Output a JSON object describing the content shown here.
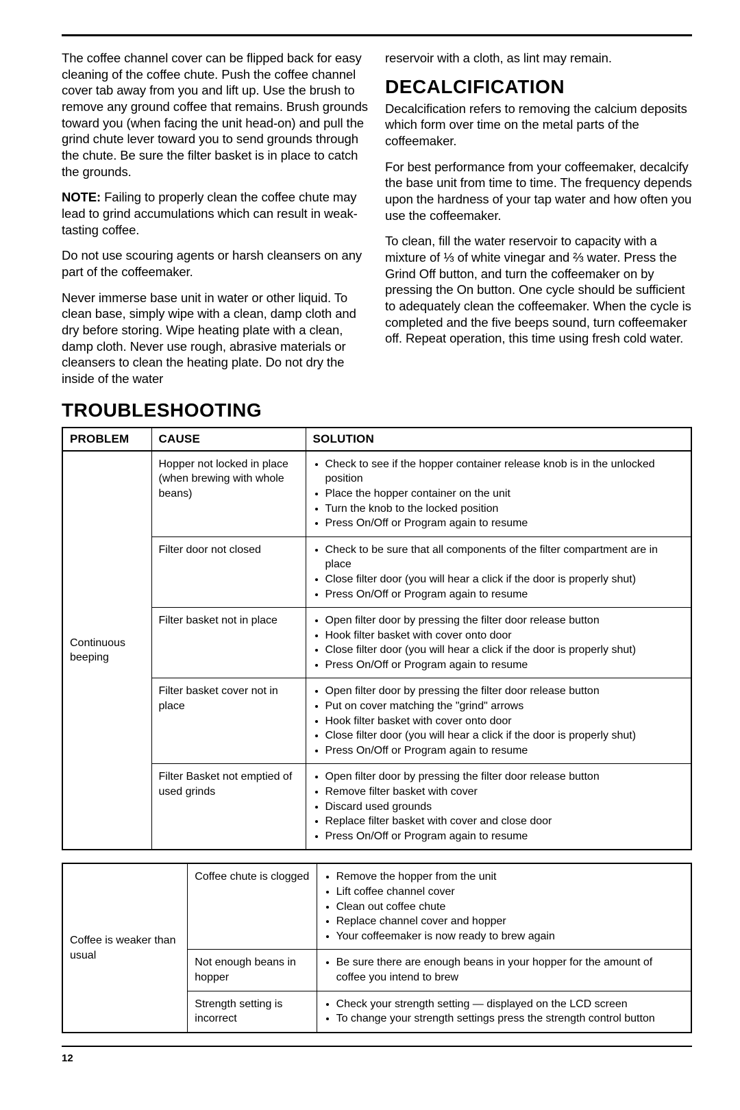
{
  "leftColumn": {
    "p1": "The coffee channel cover can be flipped back for easy cleaning of the coffee chute. Push the coffee channel cover tab away from you and lift up. Use the brush to remove any ground coffee that remains. Brush grounds toward you (when facing the unit head-on) and pull the grind chute lever toward you to send grounds through the chute.  Be sure the filter basket is in place to catch the grounds.",
    "noteLabel": "NOTE:",
    "p2": " Failing to properly clean the coffee chute may lead to grind accumulations which can result in weak-tasting coffee.",
    "p3": "Do not use scouring agents or harsh cleansers on any part of the coffeemaker.",
    "p4": "Never immerse base unit in water or other liquid. To clean base, simply wipe with a clean, damp cloth and dry before storing. Wipe heating plate with a clean, damp cloth. Never use rough, abrasive materials or cleansers to clean the heating plate. Do not dry the inside of the water"
  },
  "rightColumn": {
    "p0": "reservoir with a cloth, as lint may remain.",
    "heading": "DECALCIFICATION",
    "p1": "Decalcification refers to removing the calcium deposits which form over time on the metal parts of the coffeemaker.",
    "p2": "For best performance from your coffeemaker, decalcify the base unit from time to time. The frequency depends upon the hardness of your tap water and how often you use the coffeemaker.",
    "p3": "To clean, fill the water reservoir to capacity with a mixture of ⅓ of white vinegar and ⅔ water. Press the Grind Off button, and turn the coffeemaker on by pressing the On button. One cycle should be sufficient to adequately clean the coffeemaker. When the cycle is completed and the five beeps sound, turn coffeemaker off. Repeat operation, this time using fresh cold water."
  },
  "tsHeading": "TROUBLESHOOTING",
  "headers": {
    "problem": "PROBLEM",
    "cause": "CAUSE",
    "solution": "SOLUTION"
  },
  "table1": {
    "problem": "Continuous beeping",
    "rows": [
      {
        "cause": "Hopper not locked in place (when brewing with whole beans)",
        "solution": [
          "Check to see if the hopper container release knob is in the unlocked position",
          "Place the hopper container on the unit",
          "Turn the knob to the locked position",
          "Press On/Off or Program again to resume"
        ]
      },
      {
        "cause": "Filter door not closed",
        "solution": [
          "Check to be sure that all components of the filter compartment are in place",
          "Close filter door (you will hear a click if the door is properly shut)",
          "Press On/Off or Program again to resume"
        ]
      },
      {
        "cause": "Filter basket not in place",
        "solution": [
          "Open filter door by pressing the filter door release button",
          "Hook filter basket with cover onto door",
          "Close filter door (you will hear a click if the door is properly shut)",
          "Press On/Off or Program again to resume"
        ]
      },
      {
        "cause": "Filter basket cover not in place",
        "solution": [
          "Open filter door by pressing the filter door release button",
          "Put on cover matching the \"grind\" arrows",
          "Hook filter basket with cover onto door",
          "Close filter door (you will hear a click if the door is properly shut)",
          "Press On/Off or Program again to resume"
        ]
      },
      {
        "cause": "Filter Basket not emptied of used grinds",
        "solution": [
          "Open filter door by pressing the filter door release button",
          "Remove filter basket with cover",
          "Discard used grounds",
          "Replace filter basket with cover and close door",
          "Press On/Off or Program again to resume"
        ]
      }
    ]
  },
  "table2": {
    "problem": "Coffee is weaker than usual",
    "rows": [
      {
        "cause": "Coffee chute is clogged",
        "solution": [
          "Remove the hopper from the unit",
          "Lift coffee channel cover",
          "Clean out coffee chute",
          "Replace channel cover and hopper",
          "Your coffeemaker is now ready to brew again"
        ]
      },
      {
        "cause": "Not enough beans in hopper",
        "solution": [
          "Be sure there are enough beans in your hopper for the amount of coffee you intend to brew"
        ]
      },
      {
        "cause": "Strength setting is incorrect",
        "solution": [
          "Check your strength setting — displayed on the LCD screen",
          "To change your strength settings press the strength control button"
        ]
      }
    ]
  },
  "pageNumber": "12"
}
